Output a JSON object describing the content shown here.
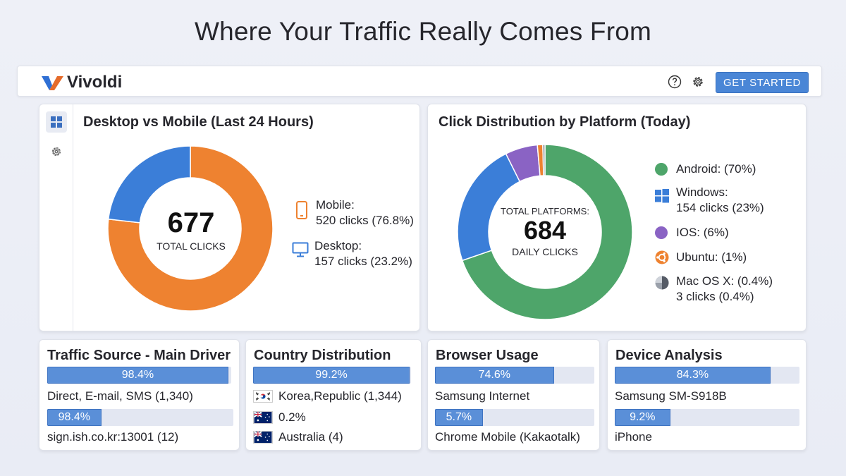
{
  "headline": "Where Your Traffic Really Comes From",
  "header": {
    "brand_name": "Vivoldi",
    "cta_label": "GET STARTED",
    "icons": [
      "help-icon",
      "gear-icon"
    ]
  },
  "colors": {
    "accent": "#4a86d6",
    "orange": "#ee8230",
    "blue": "#3b7ed8",
    "green": "#4ea56a",
    "purple": "#8a63c4",
    "bar_fill": "#5a8fd8"
  },
  "desktop_mobile": {
    "title": "Desktop vs Mobile (Last 24 Hours)",
    "total": "677",
    "total_caption": "TOTAL CLICKS",
    "legend": [
      {
        "line1": "Mobile:",
        "line2": "520 clicks (76.8%)",
        "icon": "mobile-phone-icon",
        "color": "#ee8230"
      },
      {
        "line1": "Desktop:",
        "line2": "157 clicks (23.2%)",
        "icon": "desktop-monitor-icon",
        "color": "#3b7ed8"
      }
    ]
  },
  "platform": {
    "title": "Click Distribution by Platform (Today)",
    "center_top": "TOTAL PLATFORMS:",
    "total": "684",
    "center_bottom": "DAILY CLICKS",
    "legend": [
      {
        "line1": "Android: (70%)",
        "line2": "",
        "icon": "android-dot-icon",
        "color": "#4ea56a"
      },
      {
        "line1": "Windows:",
        "line2": "154 clicks (23%)",
        "icon": "windows-logo-icon",
        "color": "#3b7ed8"
      },
      {
        "line1": "IOS: (6%)",
        "line2": "",
        "icon": "ios-dot-icon",
        "color": "#8a63c4"
      },
      {
        "line1": "Ubuntu: (1%)",
        "line2": "",
        "icon": "ubuntu-logo-icon",
        "color": "#ee8230"
      },
      {
        "line1": "Mac OS X: (0.4%)",
        "line2": "3 clicks (0.4%)",
        "icon": "macos-dot-icon",
        "color": "#7a7f8a"
      }
    ]
  },
  "chart_data": [
    {
      "type": "pie",
      "title": "Desktop vs Mobile (Last 24 Hours)",
      "categories": [
        "Mobile",
        "Desktop"
      ],
      "values": [
        520,
        157
      ],
      "percents": [
        76.8,
        23.2
      ],
      "colors": [
        "#ee8230",
        "#3b7ed8"
      ]
    },
    {
      "type": "pie",
      "title": "Click Distribution by Platform (Today)",
      "categories": [
        "Android",
        "Windows",
        "IOS",
        "Ubuntu",
        "Mac OS X"
      ],
      "values": [
        70,
        23,
        6,
        1,
        0.4
      ],
      "colors": [
        "#4ea56a",
        "#3b7ed8",
        "#8a63c4",
        "#ee8230",
        "#7a7f8a"
      ]
    }
  ],
  "mini_cards": [
    {
      "title": "Traffic Source - Main Driver",
      "rows": [
        {
          "pct": "98.4%",
          "fill": 0.984,
          "label": "Direct, E-mail, SMS (1,340)",
          "flag": ""
        },
        {
          "pct": "98.4%",
          "fill": 0.29,
          "label": "sign.ish.co.kr:13001 (12)",
          "flag": ""
        }
      ]
    },
    {
      "title": "Country Distribution",
      "rows": [
        {
          "pct": "99.2%",
          "fill": 0.992,
          "label": "Korea,Republic (1,344)",
          "flag": "korea-flag-icon"
        },
        {
          "pct": "",
          "fill": 0,
          "label": "0.2%",
          "flag": "australia-flag-icon"
        },
        {
          "pct": "",
          "fill": 0,
          "label": "Australia (4)",
          "flag": "australia-flag-icon"
        }
      ]
    },
    {
      "title": "Browser Usage",
      "rows": [
        {
          "pct": "74.6%",
          "fill": 0.746,
          "label": "Samsung Internet",
          "flag": ""
        },
        {
          "pct": "5.7%",
          "fill": 0.3,
          "label": "Chrome Mobile (Kakaotalk)",
          "flag": ""
        }
      ]
    },
    {
      "title": "Device Analysis",
      "rows": [
        {
          "pct": "84.3%",
          "fill": 0.843,
          "label": "Samsung SM-S918B",
          "flag": ""
        },
        {
          "pct": "9.2%",
          "fill": 0.3,
          "label": "iPhone",
          "flag": ""
        }
      ]
    }
  ]
}
